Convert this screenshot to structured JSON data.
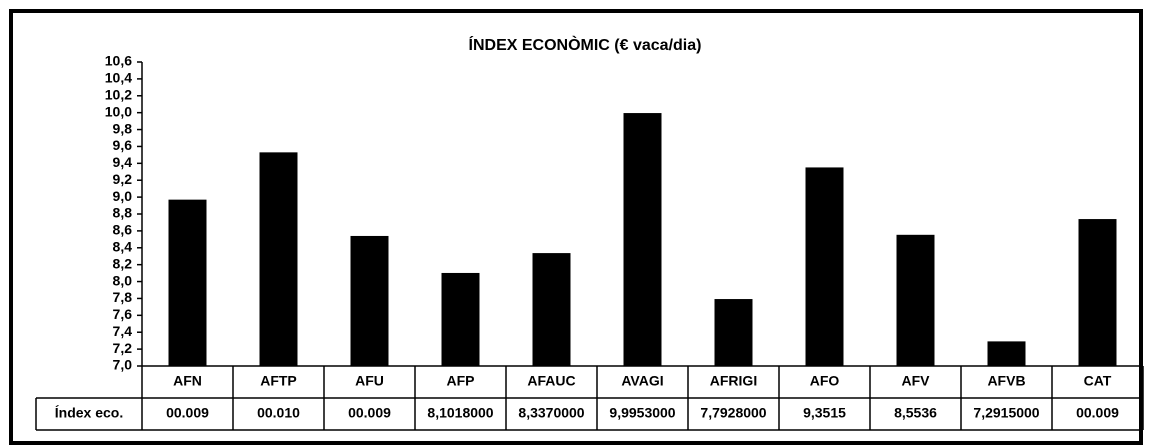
{
  "chart_data": {
    "type": "bar",
    "title": "ÍNDEX ECONÒMIC (€ vaca/dia)",
    "categories": [
      "AFN",
      "AFTP",
      "AFU",
      "AFP",
      "AFAUC",
      "AVAGI",
      "AFRIGI",
      "AFO",
      "AFV",
      "AFVB",
      "CAT"
    ],
    "values": [
      8.97,
      9.53,
      8.54,
      8.1018,
      8.337,
      9.9953,
      7.7928,
      9.3515,
      8.5536,
      7.2915,
      8.74
    ],
    "color": "#000000",
    "ylim": [
      7.0,
      10.6
    ],
    "yticks": [
      {
        "value": 7.0,
        "label": "7,0"
      },
      {
        "value": 7.2,
        "label": "7,2"
      },
      {
        "value": 7.4,
        "label": "7,4"
      },
      {
        "value": 7.6,
        "label": "7,6"
      },
      {
        "value": 7.8,
        "label": "7,8"
      },
      {
        "value": 8.0,
        "label": "8,0"
      },
      {
        "value": 8.2,
        "label": "8,2"
      },
      {
        "value": 8.4,
        "label": "8,4"
      },
      {
        "value": 8.6,
        "label": "8,6"
      },
      {
        "value": 8.8,
        "label": "8,8"
      },
      {
        "value": 9.0,
        "label": "9,0"
      },
      {
        "value": 9.2,
        "label": "9,2"
      },
      {
        "value": 9.4,
        "label": "9,4"
      },
      {
        "value": 9.6,
        "label": "9,6"
      },
      {
        "value": 9.8,
        "label": "9,8"
      },
      {
        "value": 10.0,
        "label": "10,0"
      },
      {
        "value": 10.2,
        "label": "10,2"
      },
      {
        "value": 10.4,
        "label": "10,4"
      },
      {
        "value": 10.6,
        "label": "10,6"
      }
    ],
    "grid": false,
    "data_table": {
      "row_label": "Índex eco.",
      "cells": [
        "00.009",
        "00.010",
        "00.009",
        "8,1018000",
        "8,3370000",
        "9,9953000",
        "7,7928000",
        "9,3515",
        "8,5536",
        "7,2915000",
        "00.009"
      ]
    }
  }
}
